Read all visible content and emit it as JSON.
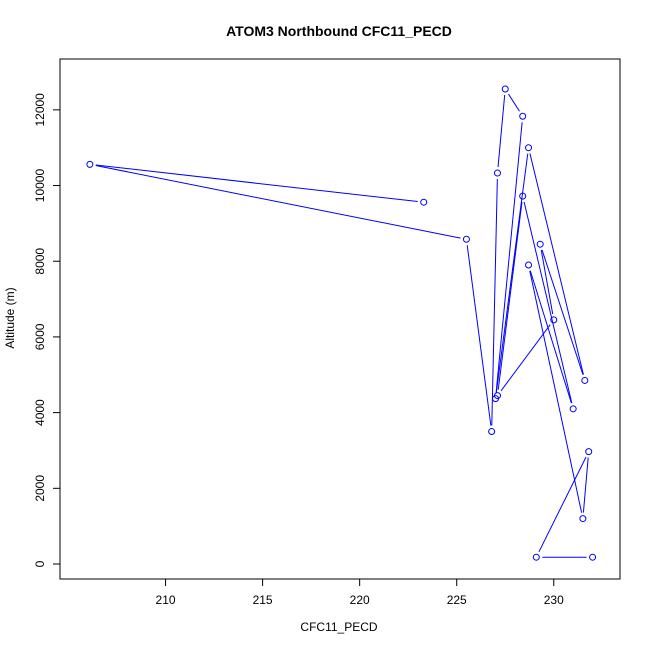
{
  "chart_data": {
    "type": "line",
    "title": "ATOM3 Northbound CFC11_PECD",
    "xlabel": "CFC11_PECD",
    "ylabel": "Altitude (m)",
    "xlim": [
      205.0,
      233.0
    ],
    "ylim": [
      0,
      13000
    ],
    "x_ticks": [
      "210",
      "215",
      "220",
      "225",
      "230"
    ],
    "y_ticks": [
      "0",
      "2000",
      "4000",
      "6000",
      "8000",
      "10000",
      "12000"
    ],
    "marker": "open-circle",
    "grid": false,
    "series": [
      {
        "color": "#0000ff",
        "points": [
          {
            "x": 223.3,
            "y": 9560
          },
          {
            "x": 206.1,
            "y": 10560
          },
          {
            "x": 225.5,
            "y": 8580
          },
          {
            "x": 226.8,
            "y": 3500
          },
          {
            "x": 227.1,
            "y": 10330
          },
          {
            "x": 227.5,
            "y": 12550
          },
          {
            "x": 228.4,
            "y": 11830
          },
          {
            "x": 227.0,
            "y": 4370
          },
          {
            "x": 228.7,
            "y": 11000
          },
          {
            "x": 231.6,
            "y": 4850
          },
          {
            "x": 229.3,
            "y": 8450
          },
          {
            "x": 230.0,
            "y": 6450
          },
          {
            "x": 227.1,
            "y": 4450
          },
          {
            "x": 228.4,
            "y": 9720
          },
          {
            "x": 231.0,
            "y": 4100
          },
          {
            "x": 228.7,
            "y": 7900
          },
          {
            "x": 231.5,
            "y": 1200
          },
          {
            "x": 231.8,
            "y": 2970
          },
          {
            "x": 229.1,
            "y": 180
          },
          {
            "x": 232.0,
            "y": 180
          }
        ]
      }
    ]
  }
}
